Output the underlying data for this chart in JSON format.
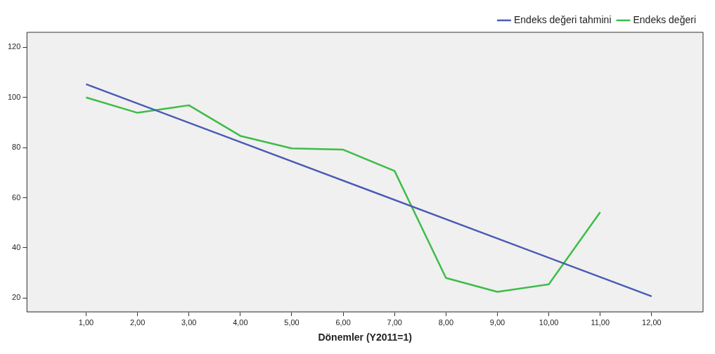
{
  "chart_data": {
    "type": "line",
    "xlabel": "Dönemler (Y2011=1)",
    "legend": "top right",
    "grid": false,
    "marker": "none",
    "xlim": [
      -0.15,
      13
    ],
    "xticks": [
      {
        "value": 1,
        "label": "1,00"
      },
      {
        "value": 2,
        "label": "2,00"
      },
      {
        "value": 3,
        "label": "3,00"
      },
      {
        "value": 4,
        "label": "4,00"
      },
      {
        "value": 5,
        "label": "5,00"
      },
      {
        "value": 6,
        "label": "6,00"
      },
      {
        "value": 7,
        "label": "7,00"
      },
      {
        "value": 8,
        "label": "8,00"
      },
      {
        "value": 9,
        "label": "9,00"
      },
      {
        "value": 10,
        "label": "10,00"
      },
      {
        "value": 11,
        "label": "11,00"
      },
      {
        "value": 12,
        "label": "12,00"
      }
    ],
    "ylim": [
      14.5,
      126
    ],
    "yticks": [
      20,
      40,
      60,
      80,
      100,
      120
    ],
    "x": [
      1,
      2,
      3,
      4,
      5,
      6,
      7,
      8,
      9,
      10,
      11
    ],
    "series": [
      {
        "name": "Endeks değeri tahmini",
        "color": "#4a5ab4",
        "x": [
          1,
          12
        ],
        "values": [
          105.3,
          20.7
        ]
      },
      {
        "name": "Endeks değeri",
        "color": "#3dbd48",
        "values": [
          100,
          93.9,
          96.9,
          84.7,
          79.7,
          79.2,
          70.7,
          28,
          22.5,
          25.5,
          54.3
        ]
      }
    ]
  }
}
